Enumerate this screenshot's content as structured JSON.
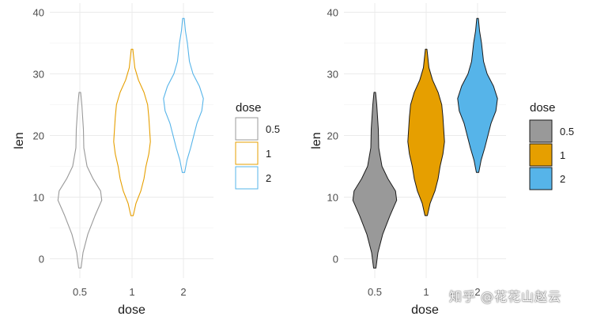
{
  "chart_data": [
    {
      "type": "violin",
      "title": "",
      "xlabel": "dose",
      "ylabel": "len",
      "ylim": [
        -3,
        41
      ],
      "yticks": [
        0,
        10,
        20,
        30,
        40
      ],
      "categories": [
        "0.5",
        "1",
        "2"
      ],
      "fill": false,
      "grid": true,
      "legend": {
        "title": "dose",
        "position": "right",
        "labels": [
          "0.5",
          "1",
          "2"
        ]
      },
      "series": [
        {
          "category": "0.5",
          "color": "#999999",
          "min": -1.5,
          "max": 27,
          "profile": [
            [
              -1.5,
              0.03
            ],
            [
              1,
              0.08
            ],
            [
              4,
              0.2
            ],
            [
              7,
              0.38
            ],
            [
              9.5,
              0.55
            ],
            [
              11,
              0.52
            ],
            [
              13,
              0.33
            ],
            [
              15,
              0.18
            ],
            [
              18,
              0.1
            ],
            [
              21,
              0.09
            ],
            [
              23,
              0.07
            ],
            [
              25,
              0.05
            ],
            [
              27,
              0.02
            ]
          ]
        },
        {
          "category": "1",
          "color": "#E69F00",
          "min": 7,
          "max": 34,
          "profile": [
            [
              7,
              0.03
            ],
            [
              9,
              0.1
            ],
            [
              11,
              0.22
            ],
            [
              13,
              0.3
            ],
            [
              15,
              0.35
            ],
            [
              17,
              0.42
            ],
            [
              19,
              0.46
            ],
            [
              21,
              0.44
            ],
            [
              23,
              0.42
            ],
            [
              25,
              0.39
            ],
            [
              27,
              0.3
            ],
            [
              29,
              0.16
            ],
            [
              31,
              0.07
            ],
            [
              34,
              0.02
            ]
          ]
        },
        {
          "category": "2",
          "color": "#56B4E9",
          "min": 14,
          "max": 39,
          "profile": [
            [
              14,
              0.03
            ],
            [
              16,
              0.09
            ],
            [
              18,
              0.18
            ],
            [
              20,
              0.26
            ],
            [
              22,
              0.34
            ],
            [
              24,
              0.46
            ],
            [
              26,
              0.5
            ],
            [
              28,
              0.4
            ],
            [
              30,
              0.24
            ],
            [
              32,
              0.15
            ],
            [
              35,
              0.1
            ],
            [
              37,
              0.05
            ],
            [
              39,
              0.02
            ]
          ]
        }
      ]
    },
    {
      "type": "violin",
      "title": "",
      "xlabel": "dose",
      "ylabel": "len",
      "ylim": [
        -3,
        41
      ],
      "yticks": [
        0,
        10,
        20,
        30,
        40
      ],
      "categories": [
        "0.5",
        "1",
        "2"
      ],
      "fill": true,
      "grid": true,
      "legend": {
        "title": "dose",
        "position": "right",
        "labels": [
          "0.5",
          "1",
          "2"
        ]
      },
      "series": [
        {
          "category": "0.5",
          "color": "#999999",
          "min": -1.5,
          "max": 27,
          "profile": [
            [
              -1.5,
              0.03
            ],
            [
              1,
              0.08
            ],
            [
              4,
              0.2
            ],
            [
              7,
              0.38
            ],
            [
              9.5,
              0.55
            ],
            [
              11,
              0.52
            ],
            [
              13,
              0.33
            ],
            [
              15,
              0.18
            ],
            [
              18,
              0.1
            ],
            [
              21,
              0.09
            ],
            [
              23,
              0.07
            ],
            [
              25,
              0.05
            ],
            [
              27,
              0.02
            ]
          ]
        },
        {
          "category": "1",
          "color": "#E69F00",
          "min": 7,
          "max": 34,
          "profile": [
            [
              7,
              0.03
            ],
            [
              9,
              0.1
            ],
            [
              11,
              0.22
            ],
            [
              13,
              0.3
            ],
            [
              15,
              0.35
            ],
            [
              17,
              0.42
            ],
            [
              19,
              0.46
            ],
            [
              21,
              0.44
            ],
            [
              23,
              0.42
            ],
            [
              25,
              0.39
            ],
            [
              27,
              0.3
            ],
            [
              29,
              0.16
            ],
            [
              31,
              0.07
            ],
            [
              34,
              0.02
            ]
          ]
        },
        {
          "category": "2",
          "color": "#56B4E9",
          "min": 14,
          "max": 39,
          "profile": [
            [
              14,
              0.03
            ],
            [
              16,
              0.09
            ],
            [
              18,
              0.18
            ],
            [
              20,
              0.26
            ],
            [
              22,
              0.34
            ],
            [
              24,
              0.46
            ],
            [
              26,
              0.5
            ],
            [
              28,
              0.4
            ],
            [
              30,
              0.24
            ],
            [
              32,
              0.15
            ],
            [
              35,
              0.1
            ],
            [
              37,
              0.05
            ],
            [
              39,
              0.02
            ]
          ]
        }
      ]
    }
  ],
  "watermark": "知乎 @花花山赵云"
}
